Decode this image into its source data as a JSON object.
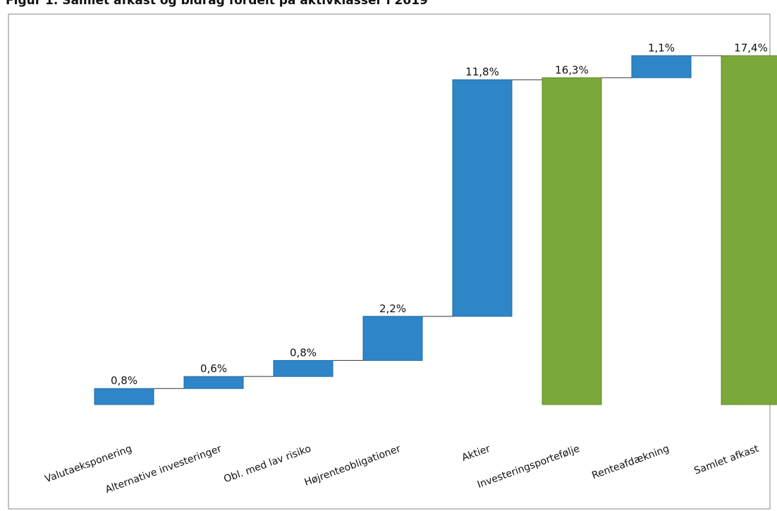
{
  "figure_title": "Figur 1. Samlet afkast og bidrag fordelt på aktivklasser i 2019",
  "chart_data": {
    "type": "bar",
    "subtype": "waterfall",
    "title": "Figur 1. Samlet afkast og bidrag fordelt på aktivklasser i 2019",
    "categories": [
      "Valutaeksponering",
      "Alternative investeringer",
      "Obl. med lav risiko",
      "Højrenteobligationer",
      "Aktier",
      "Investeringsportefølje",
      "Renteafdækning",
      "Samlet afkast"
    ],
    "values": [
      0.8,
      0.6,
      0.8,
      2.2,
      11.8,
      16.3,
      1.1,
      17.4
    ],
    "data_labels": [
      "0,8%",
      "0,6%",
      "0,8%",
      "2,2%",
      "11,8%",
      "16,3%",
      "1,1%",
      "17,4%"
    ],
    "bar_kind": [
      "increment",
      "increment",
      "increment",
      "increment",
      "increment",
      "total",
      "increment",
      "total"
    ],
    "colors": {
      "increment": "#2e86c8",
      "total": "#7aa83a",
      "frame": "#9a9a9a",
      "connector": "#333333"
    },
    "xlabel": "",
    "ylabel": "",
    "grid": false,
    "legend": "none"
  }
}
